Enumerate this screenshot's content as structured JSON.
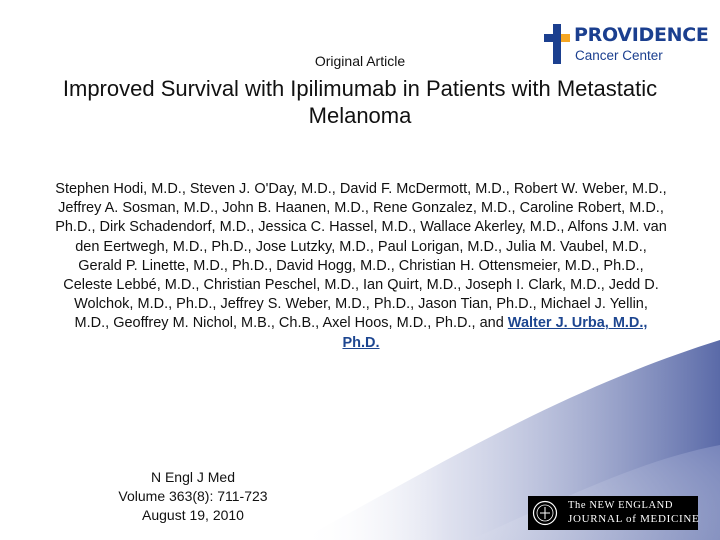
{
  "header": {
    "logo": {
      "name": "PROVIDENCE",
      "subtitle": "Cancer Center"
    },
    "kicker": "Original Article"
  },
  "article": {
    "title": "Improved Survival with Ipilimumab in Patients with Metastatic Melanoma",
    "authors": "Stephen Hodi, M.D., Steven J. O'Day, M.D., David F. McDermott, M.D., Robert W. Weber, M.D., Jeffrey A. Sosman, M.D., John B. Haanen, M.D., Rene Gonzalez, M.D., Caroline Robert, M.D., Ph.D., Dirk Schadendorf, M.D., Jessica C. Hassel, M.D., Wallace Akerley, M.D., Alfons J.M. van den Eertwegh, M.D., Ph.D., Jose Lutzky, M.D., Paul Lorigan, M.D., Julia M. Vaubel, M.D., Gerald P. Linette, M.D., Ph.D., David Hogg, M.D., Christian H. Ottensmeier, M.D., Ph.D., Celeste Lebbé, M.D., Christian Peschel, M.D., Ian Quirt, M.D., Joseph I. Clark, M.D., Jedd D. Wolchok, M.D., Ph.D., Jeffrey S. Weber, M.D., Ph.D., Jason Tian, Ph.D., Michael J. Yellin, M.D., Geoffrey M. Nichol, M.B., Ch.B., Axel Hoos, M.D., Ph.D., and",
    "corresponding_author": "Walter J. Urba, M.D., Ph.D."
  },
  "citation": {
    "journal": "N Engl J Med",
    "volume": "Volume 363(8): 711-723",
    "date": "August 19, 2010"
  },
  "journal_logo": {
    "line1": "The NEW ENGLAND",
    "line2": "JOURNAL of MEDICINE"
  },
  "colors": {
    "brand_blue": "#1b3f8f",
    "brand_orange": "#f5a623",
    "link_blue": "#1d4690",
    "swoosh": "#5a6aa8"
  }
}
